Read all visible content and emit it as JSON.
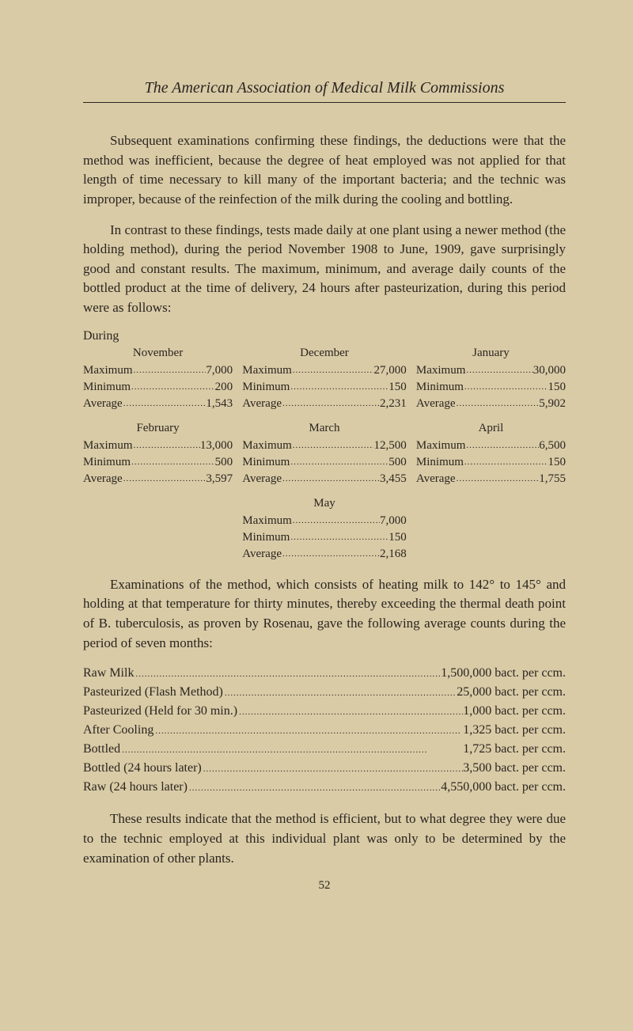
{
  "title": "The American Association of Medical Milk Commissions",
  "para1": "Subsequent examinations confirming these findings, the deductions were that the method was inefficient, because the degree of heat employed was not applied for that length of time necessary to kill many of the important bacteria; and the technic was improper, because of the reinfection of the milk during the cooling and bottling.",
  "para2": "In contrast to these findings, tests made daily at one plant using a newer method (the holding method), during the period November 1908 to June, 1909, gave surprisingly good and constant results. The maximum, minimum, and average daily counts of the bottled product at the time of delivery, 24 hours after pasteurization, during this period were as follows:",
  "during": "During",
  "months": {
    "row1": [
      {
        "name": "November",
        "max": "7,000",
        "min": "200",
        "avg": "1,543"
      },
      {
        "name": "December",
        "max": "27,000",
        "min": "150",
        "avg": "2,231"
      },
      {
        "name": "January",
        "max": "30,000",
        "min": "150",
        "avg": "5,902"
      }
    ],
    "row2": [
      {
        "name": "February",
        "max": "13,000",
        "min": "500",
        "avg": "3,597"
      },
      {
        "name": "March",
        "max": "12,500",
        "min": "500",
        "avg": "3,455"
      },
      {
        "name": "April",
        "max": "6,500",
        "min": "150",
        "avg": "1,755"
      }
    ],
    "row3": {
      "name": "May",
      "max": "7,000",
      "min": "150",
      "avg": "2,168"
    }
  },
  "labels": {
    "max": "Maximum",
    "min": "Minimum",
    "avg": "Average"
  },
  "para3": "Examinations of the method, which consists of heating milk to 142° to 145° and holding at that temperature for thirty minutes, thereby exceeding the thermal death point of B. tuberculosis, as proven by Rosenau, gave the following average counts during the period of seven months:",
  "counts": [
    {
      "label": "Raw Milk",
      "val": "1,500,000 bact. per ccm."
    },
    {
      "label": "Pasteurized (Flash Method)",
      "val": "25,000 bact. per ccm."
    },
    {
      "label": "Pasteurized (Held for 30 min.)",
      "val": "1,000 bact. per ccm."
    },
    {
      "label": "After Cooling",
      "val": "1,325 bact. per ccm."
    },
    {
      "label": "Bottled",
      "val": "1,725 bact. per ccm."
    },
    {
      "label": "Bottled (24 hours later)",
      "val": "3,500 bact. per ccm."
    },
    {
      "label": "Raw    (24 hours later)",
      "val": "4,550,000 bact. per ccm."
    }
  ],
  "para4": "These results indicate that the method is efficient, but to what degree they were due to the technic employed at this individual plant was only to be determined by the examination of other plants.",
  "page_num": "52",
  "dotfill": "......................................................................................................."
}
